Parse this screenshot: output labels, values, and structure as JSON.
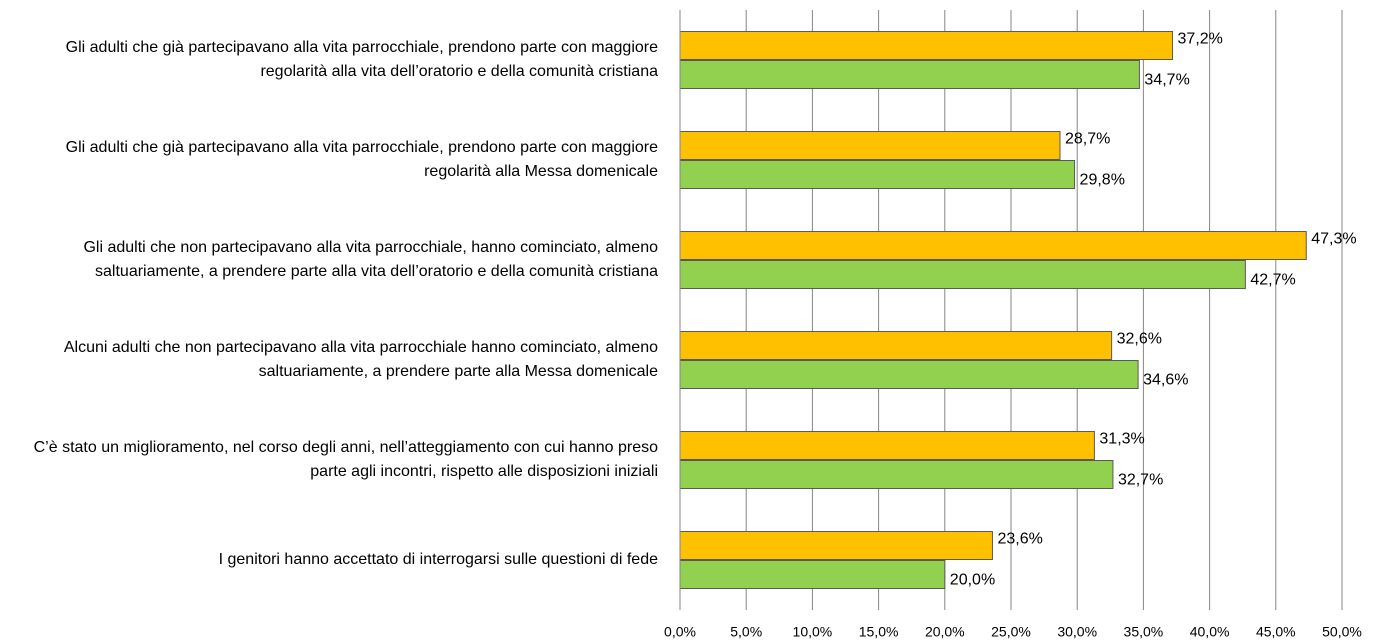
{
  "chart_data": {
    "type": "bar",
    "orientation": "horizontal",
    "categories": [
      "Gli adulti che già partecipavano alla vita parrocchiale, prendono parte con maggiore regolarità alla vita dell’oratorio e della comunità cristiana",
      "Gli adulti che già partecipavano alla vita parrocchiale, prendono parte con maggiore regolarità alla Messa domenicale",
      "Gli adulti che non partecipavano alla vita parrocchiale, hanno cominciato, almeno saltuariamente, a prendere parte alla vita dell’oratorio e della comunità cristiana",
      "Alcuni adulti che non partecipavano alla vita parrocchiale hanno cominciato, almeno saltuariamente, a prendere parte alla Messa domenicale",
      "C’è stato un miglioramento, nel corso degli anni, nell’atteggiamento con cui hanno preso parte agli incontri, rispetto alle disposizioni iniziali",
      "I genitori hanno accettato di interrogarsi sulle questioni di fede"
    ],
    "series": [
      {
        "color": "#FFC000",
        "values": [
          37.2,
          28.7,
          47.3,
          32.6,
          31.3,
          23.6
        ],
        "value_labels": [
          "37,2%",
          "28,7%",
          "47,3%",
          "32,6%",
          "31,3%",
          "23,6%"
        ]
      },
      {
        "color": "#92D050",
        "values": [
          34.7,
          29.8,
          42.7,
          34.6,
          32.7,
          20.0
        ],
        "value_labels": [
          "34,7%",
          "29,8%",
          "42,7%",
          "34,6%",
          "32,7%",
          "20,0%"
        ]
      }
    ],
    "xlim": [
      0,
      50
    ],
    "xticks": [
      {
        "value": 0,
        "label": "0,0%"
      },
      {
        "value": 5,
        "label": "5,0%"
      },
      {
        "value": 10,
        "label": "10,0%"
      },
      {
        "value": 15,
        "label": "15,0%"
      },
      {
        "value": 20,
        "label": "20,0%"
      },
      {
        "value": 25,
        "label": "25,0%"
      },
      {
        "value": 30,
        "label": "30,0%"
      },
      {
        "value": 35,
        "label": "35,0%"
      },
      {
        "value": 40,
        "label": "40,0%"
      },
      {
        "value": 45,
        "label": "45,0%"
      },
      {
        "value": 50,
        "label": "50,0%"
      }
    ],
    "grid": true
  }
}
